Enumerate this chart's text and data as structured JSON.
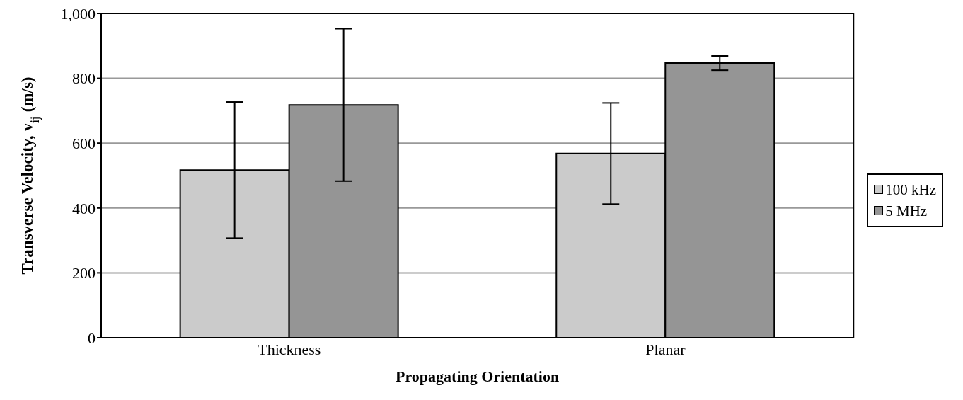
{
  "chart_data": {
    "type": "bar",
    "xlabel": "Propagating Orientation",
    "ylabel": "Transverse Velocity, v$_{ij}$ (m/s)",
    "categories": [
      "Thickness",
      "Planar"
    ],
    "series": [
      {
        "name": "100 kHz",
        "color": "#cbcbcb",
        "values": [
          517,
          568
        ],
        "errors": [
          210,
          156
        ]
      },
      {
        "name": "5 MHz",
        "color": "#959595",
        "values": [
          718,
          847
        ],
        "errors": [
          235,
          22
        ]
      }
    ],
    "ylim": [
      0,
      1000
    ],
    "yticks": [
      0,
      200,
      400,
      600,
      800,
      {
        "value": 1000,
        "label": "1,000"
      }
    ],
    "grid": "y",
    "legend": "right"
  }
}
